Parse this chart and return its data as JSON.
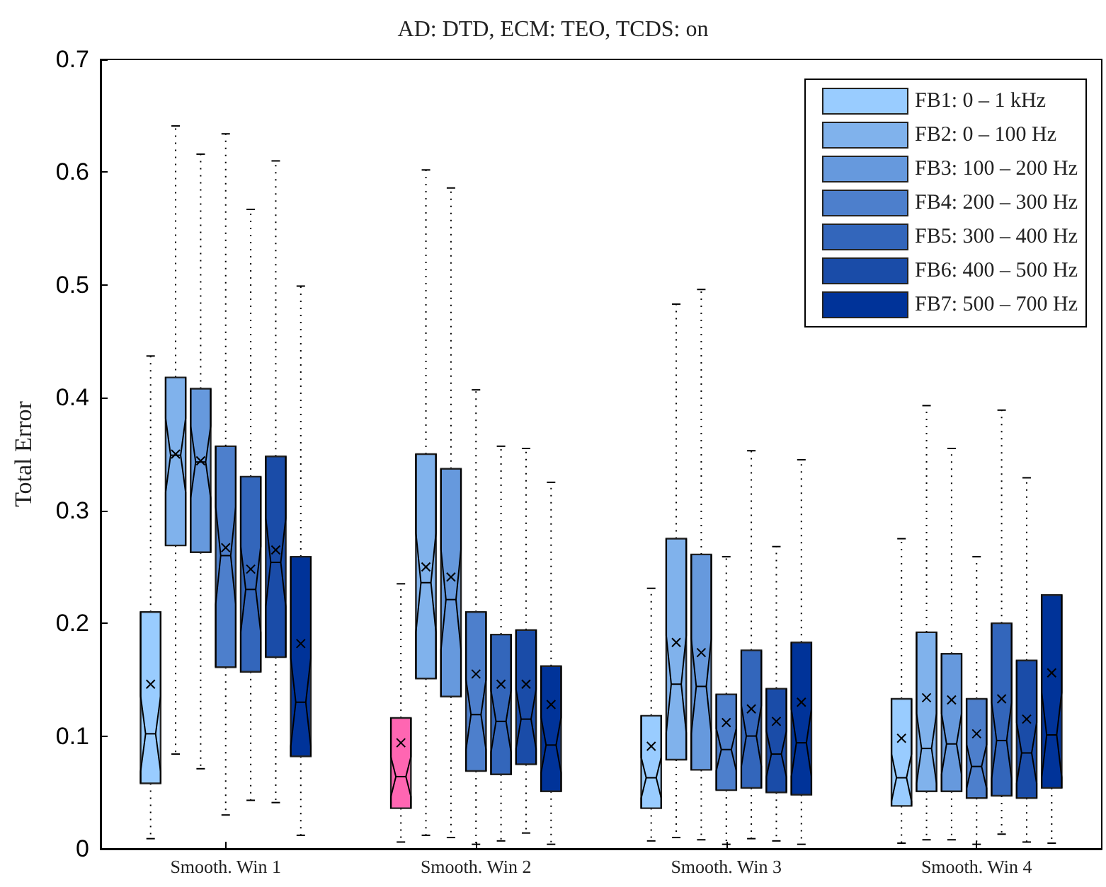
{
  "chart_data": {
    "type": "box",
    "title": "AD: DTD, ECM: TEO, TCDS: on",
    "ylabel": "Total Error",
    "categories": [
      "Smooth. Win 1",
      "Smooth. Win 2",
      "Smooth. Win 3",
      "Smooth. Win 4"
    ],
    "ylim": [
      0,
      0.7
    ],
    "yticks": [
      0,
      0.1,
      0.2,
      0.3,
      0.4,
      0.5,
      0.6,
      0.7
    ],
    "legend": "top right",
    "grid": false,
    "series": [
      {
        "name": "FB1: 0 – 1 kHz",
        "color": "#99ccff",
        "colors": [
          "#99ccff",
          "#ff66b2",
          "#99ccff",
          "#99ccff"
        ],
        "boxes": [
          {
            "low": 0.009,
            "q1": 0.058,
            "median": 0.102,
            "q3": 0.21,
            "high": 0.437,
            "mean": 0.146
          },
          {
            "low": 0.006,
            "q1": 0.036,
            "median": 0.064,
            "q3": 0.116,
            "high": 0.235,
            "mean": 0.094
          },
          {
            "low": 0.007,
            "q1": 0.036,
            "median": 0.063,
            "q3": 0.118,
            "high": 0.231,
            "mean": 0.091
          },
          {
            "low": 0.005,
            "q1": 0.038,
            "median": 0.063,
            "q3": 0.133,
            "high": 0.275,
            "mean": 0.098
          }
        ]
      },
      {
        "name": "FB2: 0 – 100 Hz",
        "color": "#80b2ec",
        "boxes": [
          {
            "low": 0.084,
            "q1": 0.269,
            "median": 0.349,
            "q3": 0.418,
            "high": 0.641,
            "mean": 0.35
          },
          {
            "low": 0.012,
            "q1": 0.151,
            "median": 0.236,
            "q3": 0.35,
            "high": 0.602,
            "mean": 0.25
          },
          {
            "low": 0.01,
            "q1": 0.079,
            "median": 0.146,
            "q3": 0.275,
            "high": 0.483,
            "mean": 0.183
          },
          {
            "low": 0.008,
            "q1": 0.051,
            "median": 0.089,
            "q3": 0.192,
            "high": 0.393,
            "mean": 0.134
          }
        ]
      },
      {
        "name": "FB3: 100 – 200 Hz",
        "color": "#6699dd",
        "boxes": [
          {
            "low": 0.071,
            "q1": 0.263,
            "median": 0.343,
            "q3": 0.408,
            "high": 0.616,
            "mean": 0.344
          },
          {
            "low": 0.01,
            "q1": 0.135,
            "median": 0.221,
            "q3": 0.337,
            "high": 0.586,
            "mean": 0.241
          },
          {
            "low": 0.008,
            "q1": 0.07,
            "median": 0.144,
            "q3": 0.261,
            "high": 0.496,
            "mean": 0.174
          },
          {
            "low": 0.008,
            "q1": 0.051,
            "median": 0.093,
            "q3": 0.173,
            "high": 0.355,
            "mean": 0.132
          }
        ]
      },
      {
        "name": "FB4: 200 – 300 Hz",
        "color": "#4d7fcc",
        "boxes": [
          {
            "low": 0.03,
            "q1": 0.161,
            "median": 0.26,
            "q3": 0.357,
            "high": 0.634,
            "mean": 0.267
          },
          {
            "low": 0.004,
            "q1": 0.069,
            "median": 0.119,
            "q3": 0.21,
            "high": 0.407,
            "mean": 0.155
          },
          {
            "low": 0.004,
            "q1": 0.052,
            "median": 0.088,
            "q3": 0.137,
            "high": 0.259,
            "mean": 0.112
          },
          {
            "low": 0.004,
            "q1": 0.045,
            "median": 0.073,
            "q3": 0.133,
            "high": 0.259,
            "mean": 0.102
          }
        ]
      },
      {
        "name": "FB5: 300 – 400 Hz",
        "color": "#3366bb",
        "boxes": [
          {
            "low": 0.043,
            "q1": 0.157,
            "median": 0.23,
            "q3": 0.33,
            "high": 0.567,
            "mean": 0.248
          },
          {
            "low": 0.007,
            "q1": 0.066,
            "median": 0.113,
            "q3": 0.19,
            "high": 0.357,
            "mean": 0.146
          },
          {
            "low": 0.009,
            "q1": 0.054,
            "median": 0.1,
            "q3": 0.176,
            "high": 0.353,
            "mean": 0.124
          },
          {
            "low": 0.013,
            "q1": 0.047,
            "median": 0.096,
            "q3": 0.2,
            "high": 0.389,
            "mean": 0.133
          }
        ]
      },
      {
        "name": "FB6: 400 – 500 Hz",
        "color": "#1a4ca8",
        "boxes": [
          {
            "low": 0.041,
            "q1": 0.17,
            "median": 0.254,
            "q3": 0.348,
            "high": 0.61,
            "mean": 0.265
          },
          {
            "low": 0.014,
            "q1": 0.075,
            "median": 0.115,
            "q3": 0.194,
            "high": 0.355,
            "mean": 0.146
          },
          {
            "low": 0.007,
            "q1": 0.05,
            "median": 0.084,
            "q3": 0.142,
            "high": 0.268,
            "mean": 0.113
          },
          {
            "low": 0.006,
            "q1": 0.045,
            "median": 0.085,
            "q3": 0.167,
            "high": 0.329,
            "mean": 0.115
          }
        ]
      },
      {
        "name": "FB7: 500 – 700 Hz",
        "color": "#003399",
        "boxes": [
          {
            "low": 0.012,
            "q1": 0.082,
            "median": 0.13,
            "q3": 0.259,
            "high": 0.499,
            "mean": 0.182
          },
          {
            "low": 0.004,
            "q1": 0.051,
            "median": 0.092,
            "q3": 0.162,
            "high": 0.325,
            "mean": 0.128
          },
          {
            "low": 0.004,
            "q1": 0.048,
            "median": 0.094,
            "q3": 0.183,
            "high": 0.345,
            "mean": 0.13
          },
          {
            "low": 0.005,
            "q1": 0.054,
            "median": 0.101,
            "q3": 0.225,
            "high": null,
            "mean": 0.156
          }
        ]
      }
    ]
  }
}
